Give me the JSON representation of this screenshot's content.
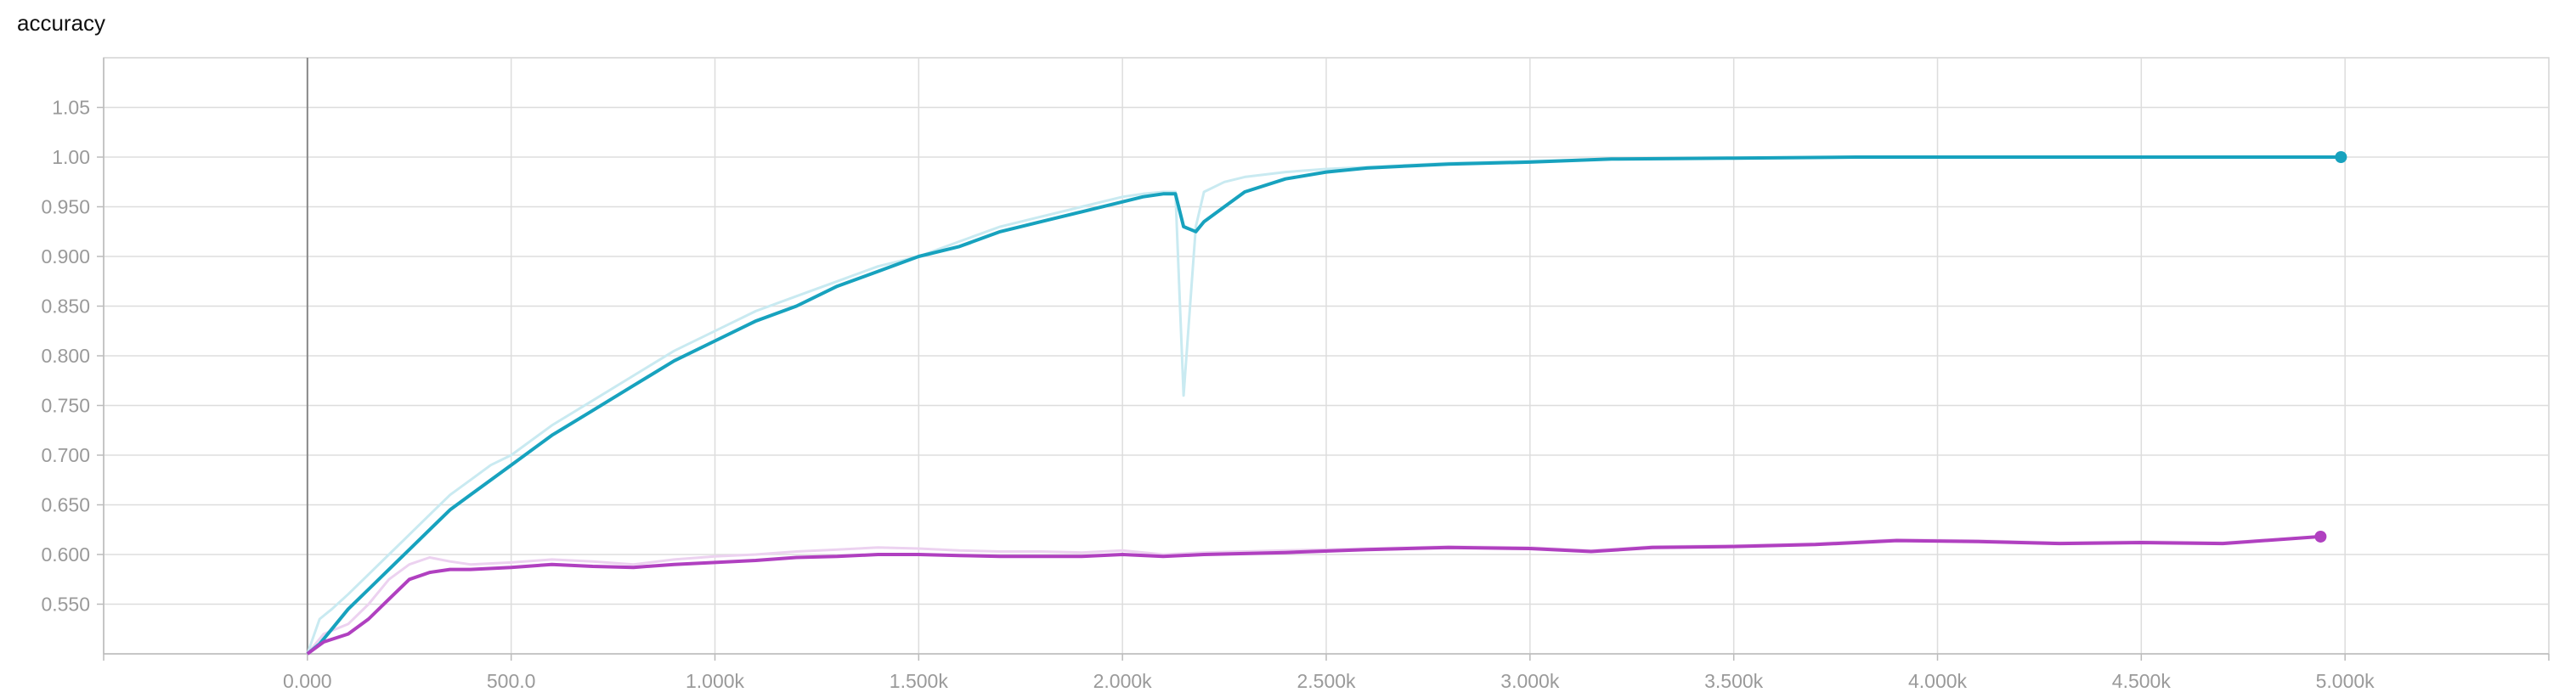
{
  "chart_data": {
    "type": "line",
    "title": "accuracy",
    "xlabel": "",
    "ylabel": "",
    "xlim": [
      -500,
      5500
    ],
    "ylim": [
      0.5,
      1.1
    ],
    "grid": true,
    "x_ticks": [
      {
        "value": 0,
        "label": "0.000"
      },
      {
        "value": 500,
        "label": "500.0"
      },
      {
        "value": 1000,
        "label": "1.000k"
      },
      {
        "value": 1500,
        "label": "1.500k"
      },
      {
        "value": 2000,
        "label": "2.000k"
      },
      {
        "value": 2500,
        "label": "2.500k"
      },
      {
        "value": 3000,
        "label": "3.000k"
      },
      {
        "value": 3500,
        "label": "3.500k"
      },
      {
        "value": 4000,
        "label": "4.000k"
      },
      {
        "value": 4500,
        "label": "4.500k"
      },
      {
        "value": 5000,
        "label": "5.000k"
      }
    ],
    "y_ticks": [
      {
        "value": 0.55,
        "label": "0.550"
      },
      {
        "value": 0.6,
        "label": "0.600"
      },
      {
        "value": 0.65,
        "label": "0.650"
      },
      {
        "value": 0.7,
        "label": "0.700"
      },
      {
        "value": 0.75,
        "label": "0.750"
      },
      {
        "value": 0.8,
        "label": "0.800"
      },
      {
        "value": 0.85,
        "label": "0.850"
      },
      {
        "value": 0.9,
        "label": "0.900"
      },
      {
        "value": 0.95,
        "label": "0.950"
      },
      {
        "value": 1.0,
        "label": "1.00"
      },
      {
        "value": 1.05,
        "label": "1.05"
      }
    ],
    "series": [
      {
        "color": "#17a2be",
        "raw_color": "#c9eaf1",
        "x": [
          0,
          30,
          60,
          100,
          150,
          200,
          250,
          300,
          350,
          400,
          450,
          500,
          600,
          700,
          800,
          900,
          1000,
          1100,
          1200,
          1300,
          1400,
          1500,
          1600,
          1700,
          1750,
          1800,
          1900,
          2000,
          2050,
          2100,
          2130,
          2150,
          2180,
          2200,
          2250,
          2300,
          2400,
          2500,
          2600,
          2700,
          2800,
          3000,
          3200,
          3500,
          3800,
          4000,
          4500,
          4990
        ],
        "values": [
          0.5,
          0.51,
          0.525,
          0.545,
          0.565,
          0.585,
          0.605,
          0.625,
          0.645,
          0.66,
          0.675,
          0.69,
          0.72,
          0.745,
          0.77,
          0.795,
          0.815,
          0.835,
          0.85,
          0.87,
          0.885,
          0.9,
          0.91,
          0.925,
          0.93,
          0.935,
          0.945,
          0.955,
          0.96,
          0.963,
          0.963,
          0.93,
          0.925,
          0.935,
          0.95,
          0.965,
          0.978,
          0.985,
          0.989,
          0.991,
          0.993,
          0.995,
          0.998,
          0.999,
          1.0,
          1.0,
          1.0,
          1.0
        ],
        "raw": [
          0.5,
          0.535,
          0.545,
          0.56,
          0.58,
          0.6,
          0.62,
          0.64,
          0.66,
          0.675,
          0.69,
          0.7,
          0.73,
          0.755,
          0.78,
          0.805,
          0.825,
          0.845,
          0.86,
          0.875,
          0.89,
          0.9,
          0.915,
          0.93,
          0.935,
          0.94,
          0.95,
          0.96,
          0.963,
          0.965,
          0.965,
          0.76,
          0.93,
          0.965,
          0.975,
          0.98,
          0.985,
          0.988,
          0.99,
          0.992,
          0.994,
          0.996,
          0.998,
          0.999,
          1.0,
          1.0,
          1.0,
          1.0
        ]
      },
      {
        "color": "#b040c0",
        "raw_color": "#ecd2f0",
        "x": [
          0,
          40,
          100,
          150,
          200,
          250,
          300,
          350,
          400,
          500,
          600,
          700,
          800,
          900,
          1000,
          1100,
          1200,
          1300,
          1400,
          1500,
          1600,
          1700,
          1800,
          1900,
          2000,
          2100,
          2200,
          2400,
          2600,
          2800,
          3000,
          3150,
          3300,
          3500,
          3700,
          3900,
          4100,
          4300,
          4500,
          4700,
          4940
        ],
        "values": [
          0.5,
          0.512,
          0.52,
          0.535,
          0.555,
          0.575,
          0.582,
          0.585,
          0.585,
          0.587,
          0.59,
          0.588,
          0.587,
          0.59,
          0.592,
          0.594,
          0.597,
          0.598,
          0.6,
          0.6,
          0.599,
          0.598,
          0.598,
          0.598,
          0.6,
          0.598,
          0.6,
          0.602,
          0.605,
          0.607,
          0.606,
          0.603,
          0.607,
          0.608,
          0.61,
          0.614,
          0.613,
          0.611,
          0.612,
          0.611,
          0.618
        ],
        "raw": [
          0.5,
          0.52,
          0.53,
          0.55,
          0.575,
          0.59,
          0.597,
          0.593,
          0.59,
          0.592,
          0.595,
          0.593,
          0.59,
          0.595,
          0.598,
          0.6,
          0.603,
          0.605,
          0.607,
          0.606,
          0.604,
          0.603,
          0.603,
          0.602,
          0.604,
          0.6,
          0.602,
          0.604,
          0.606,
          0.608,
          0.607,
          0.604,
          0.608,
          0.609,
          0.611,
          0.615,
          0.614,
          0.612,
          0.613,
          0.612,
          0.618
        ]
      }
    ]
  }
}
